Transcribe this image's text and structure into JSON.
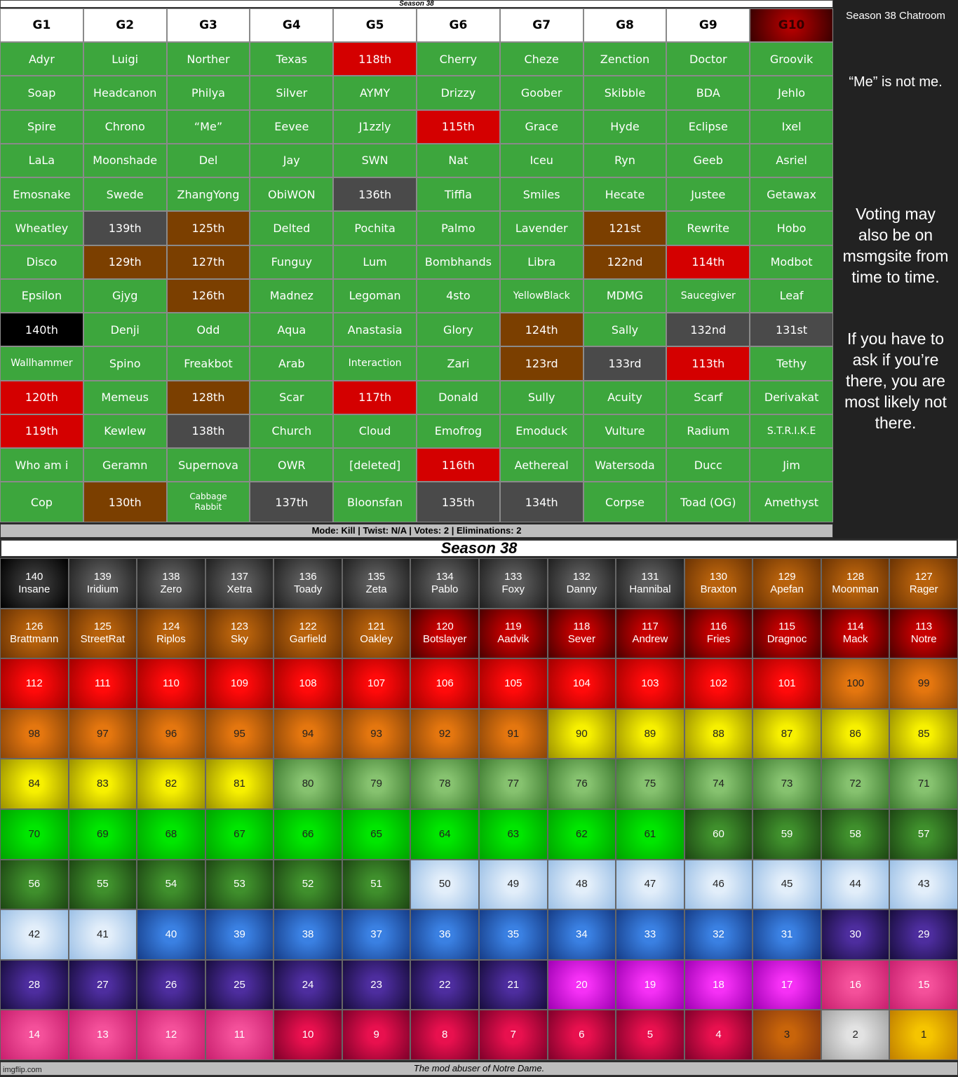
{
  "top_title": "Season 38",
  "table": {
    "headers": [
      "G1",
      "G2",
      "G3",
      "G4",
      "G5",
      "G6",
      "G7",
      "G8",
      "G9",
      "G10"
    ],
    "rows": [
      [
        "Adyr",
        "Luigi",
        "Norther",
        "Texas",
        "118th",
        "Cherry",
        "Cheze",
        "Zenction",
        "Doctor",
        "Groovik"
      ],
      [
        "Soap",
        "Headcanon",
        "Philya",
        "Silver",
        "AYMY",
        "Drizzy",
        "Goober",
        "Skibble",
        "BDA",
        "Jehlo"
      ],
      [
        "Spire",
        "Chrono",
        "“Me”",
        "Eevee",
        "J1zzly",
        "115th",
        "Grace",
        "Hyde",
        "Eclipse",
        "Ixel"
      ],
      [
        "LaLa",
        "Moonshade",
        "Del",
        "Jay",
        "SWN",
        "Nat",
        "Iceu",
        "Ryn",
        "Geeb",
        "Asriel"
      ],
      [
        "Emosnake",
        "Swede",
        "ZhangYong",
        "ObiWON",
        "136th",
        "Tiffla",
        "Smiles",
        "Hecate",
        "Justee",
        "Getawax"
      ],
      [
        "Wheatley",
        "139th",
        "125th",
        "Delted",
        "Pochita",
        "Palmo",
        "Lavender",
        "121st",
        "Rewrite",
        "Hobo"
      ],
      [
        "Disco",
        "129th",
        "127th",
        "Funguy",
        "Lum",
        "Bombhands",
        "Libra",
        "122nd",
        "114th",
        "Modbot"
      ],
      [
        "Epsilon",
        "Gjyg",
        "126th",
        "Madnez",
        "Legoman",
        "4sto",
        "YellowBlack",
        "MDMG",
        "Saucegiver",
        "Leaf"
      ],
      [
        "140th",
        "Denji",
        "Odd",
        "Aqua",
        "Anastasia",
        "Glory",
        "124th",
        "Sally",
        "132nd",
        "131st"
      ],
      [
        "Wallhammer",
        "Spino",
        "Freakbot",
        "Arab",
        "Interaction",
        "Zari",
        "123rd",
        "133rd",
        "113th",
        "Tethy"
      ],
      [
        "120th",
        "Memeus",
        "128th",
        "Scar",
        "117th",
        "Donald",
        "Sully",
        "Acuity",
        "Scarf",
        "Derivakat"
      ],
      [
        "119th",
        "Kewlew",
        "138th",
        "Church",
        "Cloud",
        "Emofrog",
        "Emoduck",
        "Vulture",
        "Radium",
        "S.T.R.I.K.E"
      ],
      [
        "Who am i",
        "Geramn",
        "Supernova",
        "OWR",
        "[deleted]",
        "116th",
        "Aethereal",
        "Watersoda",
        "Ducc",
        "Jim"
      ],
      [
        "Cop",
        "130th",
        "Cabbage Rabbit",
        "137th",
        "Bloonsfan",
        "135th",
        "134th",
        "Corpse",
        "Toad (OG)",
        "Amethyst"
      ]
    ]
  },
  "chatroom": {
    "title": "Season 38 Chatroom",
    "note": "“Me” is not me.",
    "messages": [
      "Voting may also be on msmgsite from time to time.",
      "If you have to ask if you’re there, you are most likely not there."
    ]
  },
  "mode_bar": "Mode: Kill | Twist: N/A | Votes: 2 | Eliminations: 2",
  "ranking": {
    "title": "Season 38",
    "numbers": [
      [
        140,
        139,
        138,
        137,
        136,
        135,
        134,
        133,
        132,
        131,
        130,
        129,
        128,
        127
      ],
      [
        126,
        125,
        124,
        123,
        122,
        121,
        120,
        119,
        118,
        117,
        116,
        115,
        114,
        113
      ],
      [
        112,
        111,
        110,
        109,
        108,
        107,
        106,
        105,
        104,
        103,
        102,
        101,
        100,
        99
      ],
      [
        98,
        97,
        96,
        95,
        94,
        93,
        92,
        91,
        90,
        89,
        88,
        87,
        86,
        85
      ],
      [
        84,
        83,
        82,
        81,
        80,
        79,
        78,
        77,
        76,
        75,
        74,
        73,
        72,
        71
      ],
      [
        70,
        69,
        68,
        67,
        66,
        65,
        64,
        63,
        62,
        61,
        60,
        59,
        58,
        57
      ],
      [
        56,
        55,
        54,
        53,
        52,
        51,
        50,
        49,
        48,
        47,
        46,
        45,
        44,
        43
      ],
      [
        42,
        41,
        40,
        39,
        38,
        37,
        36,
        35,
        34,
        33,
        32,
        31,
        30,
        29
      ],
      [
        28,
        27,
        26,
        25,
        24,
        23,
        22,
        21,
        20,
        19,
        18,
        17,
        16,
        15
      ],
      [
        14,
        13,
        12,
        11,
        10,
        9,
        8,
        7,
        6,
        5,
        4,
        3,
        2,
        1
      ]
    ],
    "names": [
      [
        "Insane",
        "Iridium",
        "Zero",
        "Xetra",
        "Toady",
        "Zeta",
        "Pablo",
        "Foxy",
        "Danny",
        "Hannibal",
        "Braxton",
        "Apefan",
        "Moonman",
        "Rager"
      ],
      [
        "Brattmann",
        "StreetRat",
        "Riplos",
        "Sky",
        "Garfield",
        "Oakley",
        "Botslayer",
        "Aadvik",
        "Sever",
        "Andrew",
        "Fries",
        "Dragnoc",
        "Mack",
        "Notre"
      ]
    ]
  },
  "caption": "The mod abuser of Notre Dame.",
  "watermark": "imgflip.com"
}
